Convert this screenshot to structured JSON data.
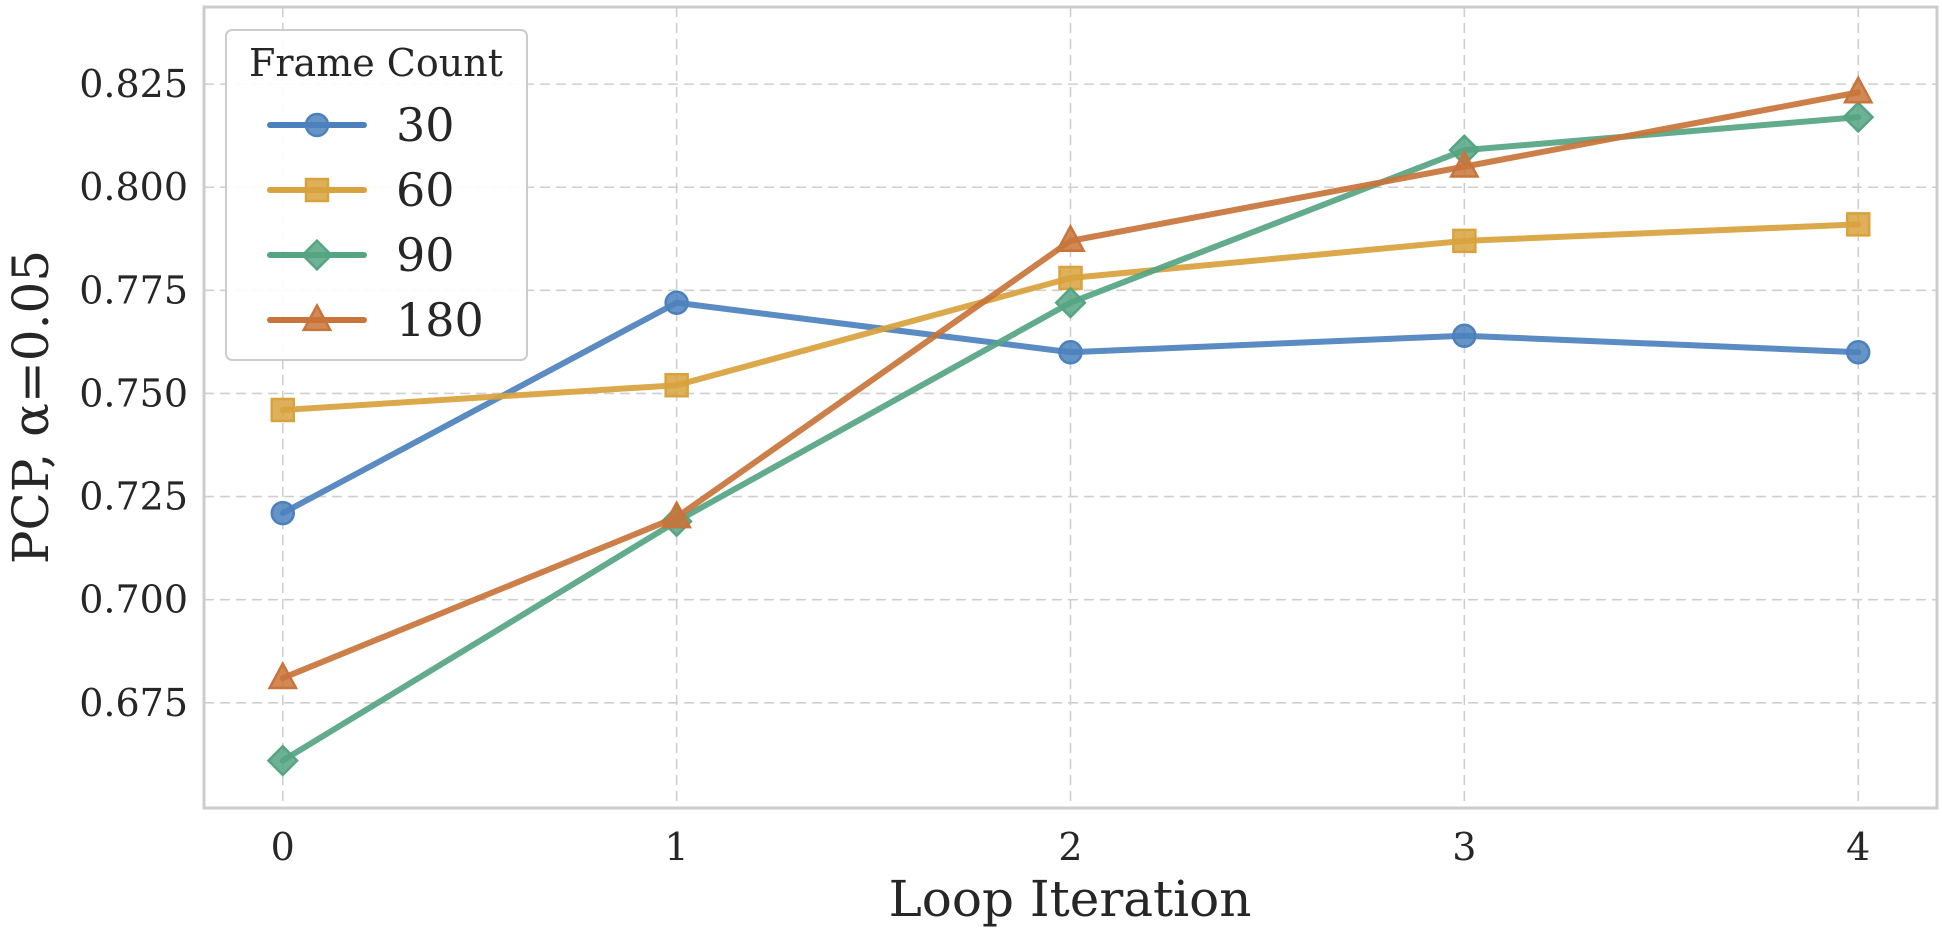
{
  "chart_data": {
    "type": "line",
    "xlabel": "Loop Iteration",
    "ylabel": "PCP, α=0.05",
    "x": [
      0,
      1,
      2,
      3,
      4
    ],
    "x_ticks": [
      "0",
      "1",
      "2",
      "3",
      "4"
    ],
    "xlim": [
      -0.2,
      4.2
    ],
    "ylim": [
      0.6495,
      0.8437
    ],
    "y_ticks": [
      "0.675",
      "0.700",
      "0.725",
      "0.750",
      "0.775",
      "0.800",
      "0.825"
    ],
    "grid": true,
    "legend": {
      "title": "Frame Count",
      "placement": "top-left"
    },
    "series": [
      {
        "name": "30",
        "marker": "circle",
        "color": "#4c81bd",
        "values": [
          0.721,
          0.772,
          0.76,
          0.764,
          0.76
        ]
      },
      {
        "name": "60",
        "marker": "square",
        "color": "#d8a23d",
        "values": [
          0.746,
          0.752,
          0.778,
          0.787,
          0.791
        ]
      },
      {
        "name": "90",
        "marker": "diamond",
        "color": "#55a583",
        "values": [
          0.661,
          0.719,
          0.772,
          0.809,
          0.817
        ]
      },
      {
        "name": "180",
        "marker": "triangle",
        "color": "#c8743a",
        "values": [
          0.681,
          0.72,
          0.787,
          0.805,
          0.823
        ]
      }
    ]
  }
}
